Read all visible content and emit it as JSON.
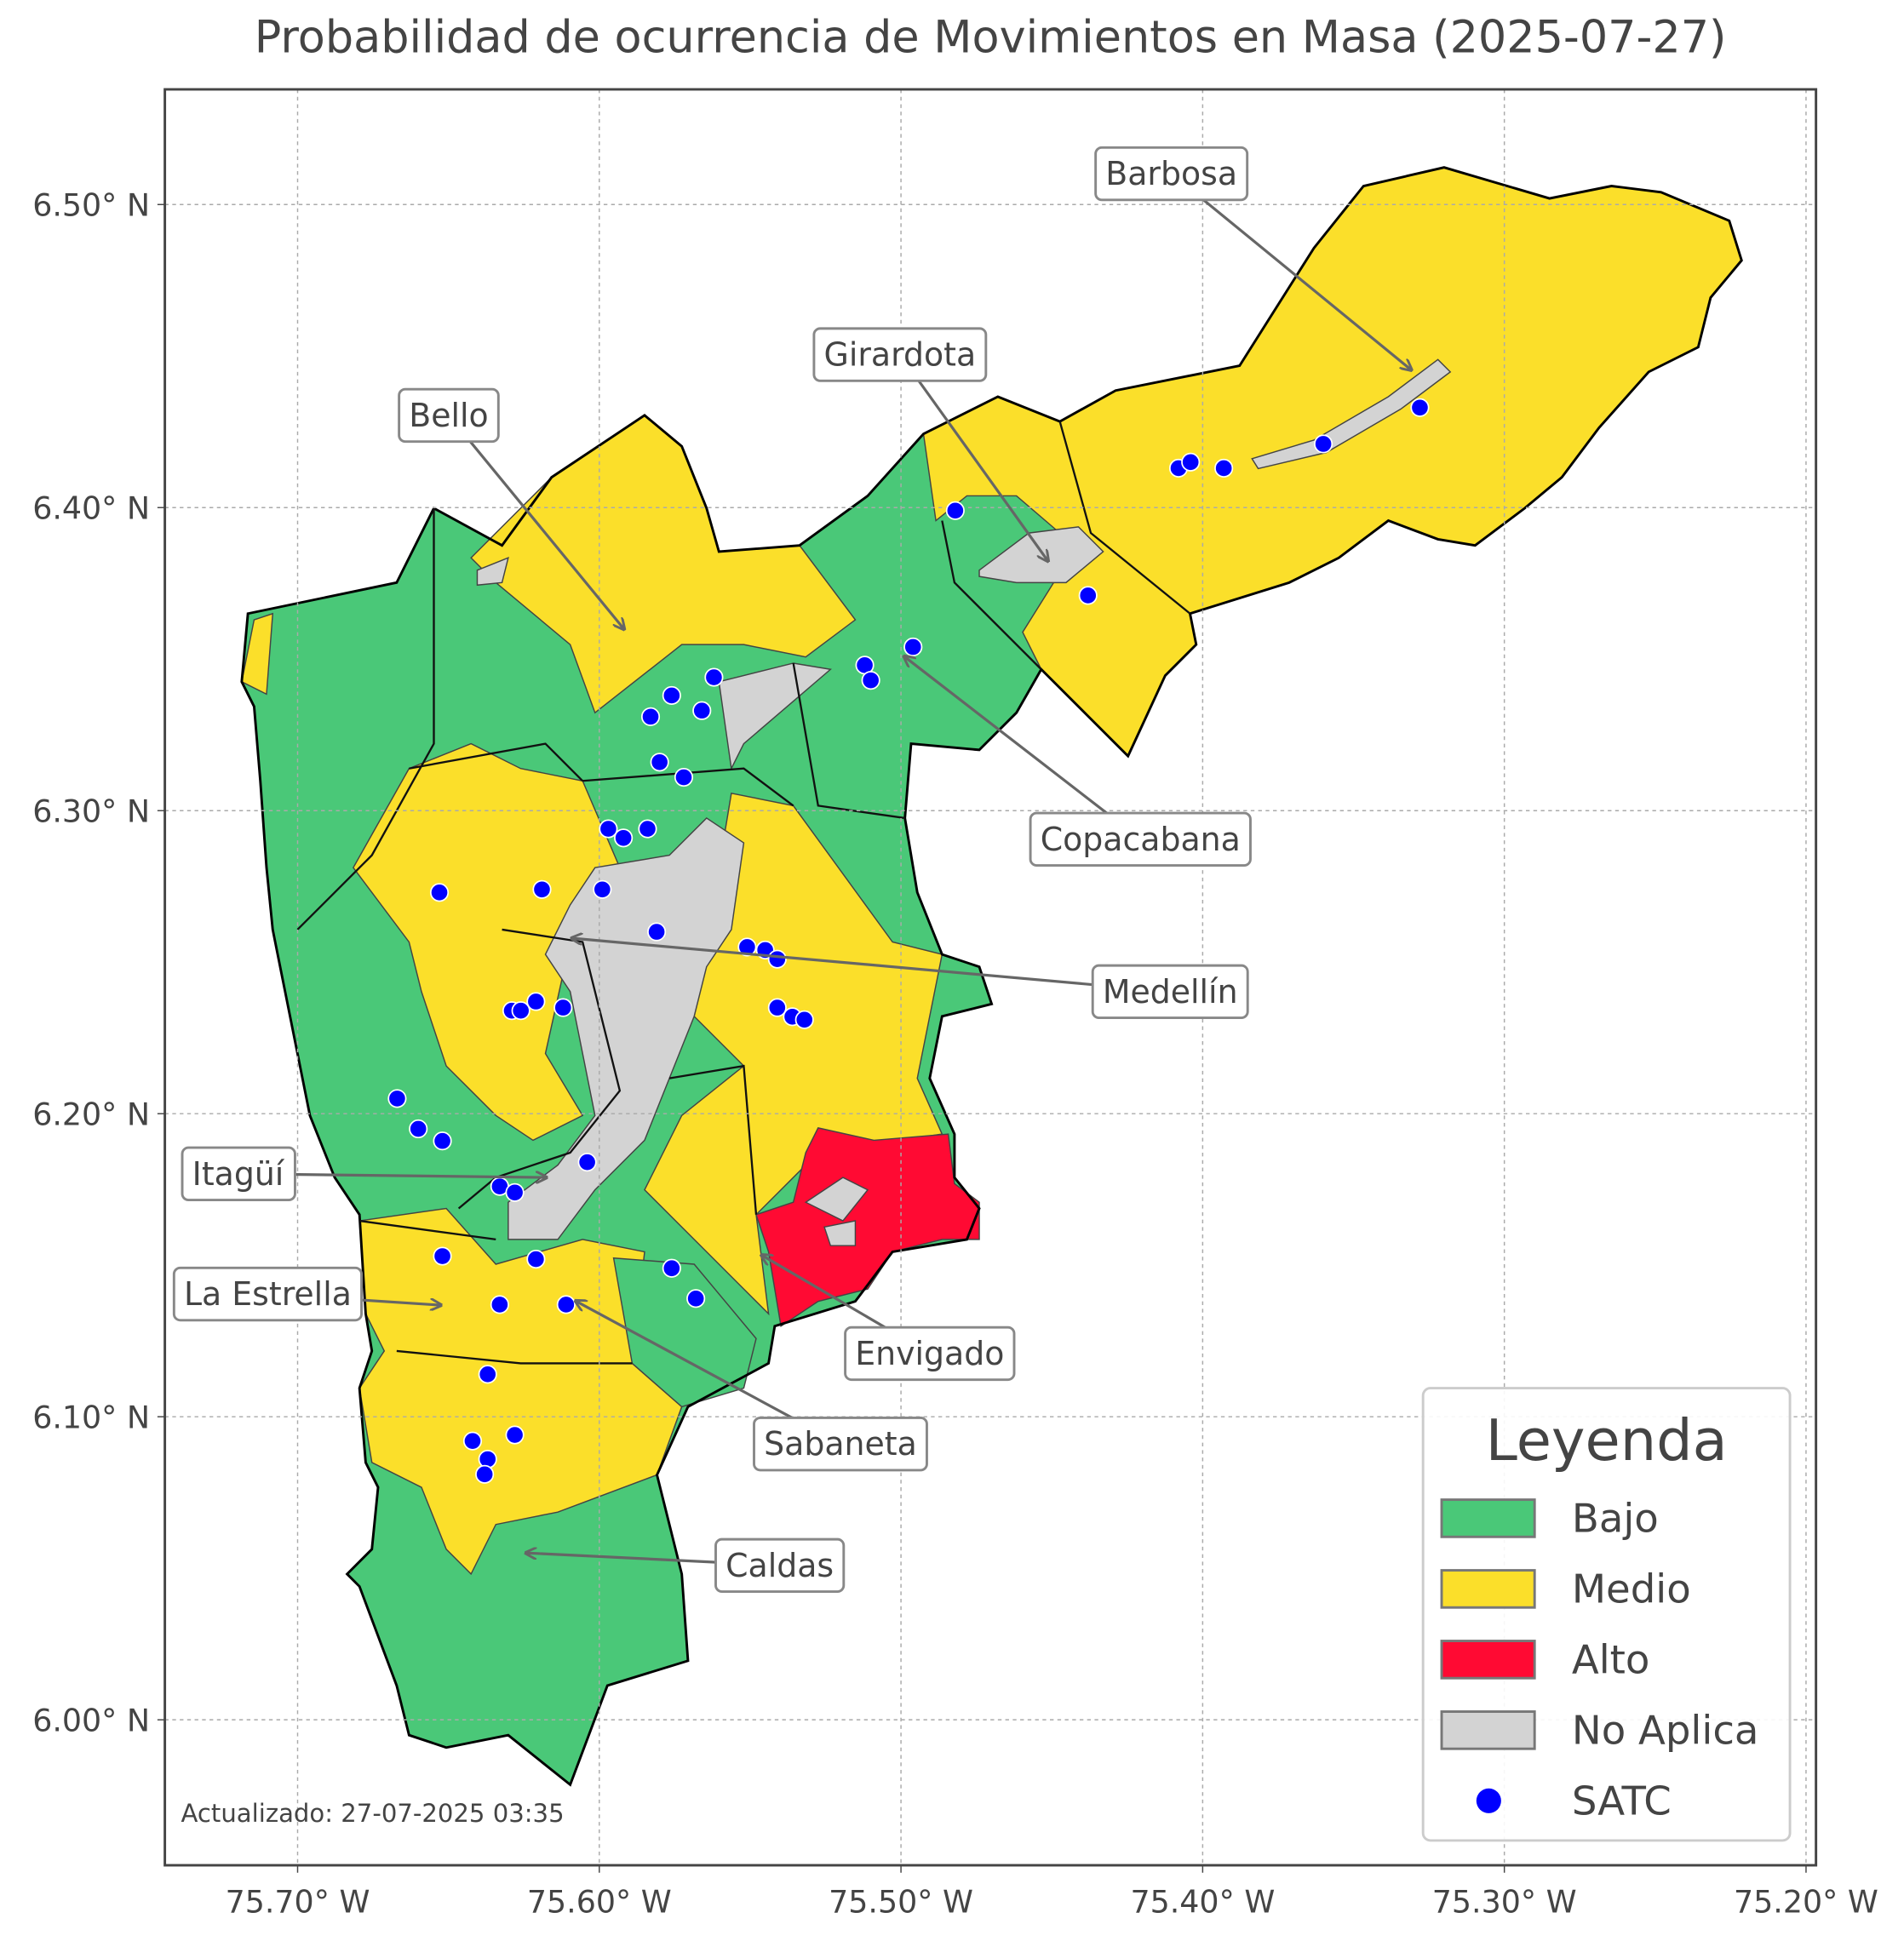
{
  "map": {
    "title": "Probabilidad de ocurrencia de Movimientos en Masa (2025-07-27)",
    "xlim": [
      -75.744,
      -75.1967
    ],
    "ylim": [
      5.952,
      6.538
    ],
    "xticks": [
      {
        "value": -75.7,
        "label": "75.70° W"
      },
      {
        "value": -75.6,
        "label": "75.60° W"
      },
      {
        "value": -75.5,
        "label": "75.50° W"
      },
      {
        "value": -75.4,
        "label": "75.40° W"
      },
      {
        "value": -75.3,
        "label": "75.30° W"
      },
      {
        "value": -75.2,
        "label": "75.20° W"
      }
    ],
    "yticks": [
      {
        "value": 6.0,
        "label": "6.00° N"
      },
      {
        "value": 6.1,
        "label": "6.10° N"
      },
      {
        "value": 6.2,
        "label": "6.20° N"
      },
      {
        "value": 6.3,
        "label": "6.30° N"
      },
      {
        "value": 6.4,
        "label": "6.40° N"
      },
      {
        "value": 6.5,
        "label": "6.50° N"
      }
    ],
    "grid": true,
    "legend": {
      "title": "Leyenda",
      "position": "lower right",
      "items": [
        {
          "name": "Bajo",
          "color": "#4ac878"
        },
        {
          "name": "Medio",
          "color": "#fbdf2a"
        },
        {
          "name": "Alto",
          "color": "#ff0a33"
        },
        {
          "name": "No Aplica",
          "color": "#d3d3d3"
        }
      ]
    },
    "stations": {
      "name": "SATC",
      "color": "#0000ff",
      "x": [
        -75.482,
        -75.408,
        -75.404,
        -75.393,
        -75.36,
        -75.328,
        -75.438,
        -75.496,
        -75.512,
        -75.51,
        -75.562,
        -75.576,
        -75.566,
        -75.583,
        -75.58,
        -75.572,
        -75.597,
        -75.592,
        -75.584,
        -75.653,
        -75.619,
        -75.599,
        -75.581,
        -75.551,
        -75.545,
        -75.541,
        -75.541,
        -75.536,
        -75.532,
        -75.621,
        -75.629,
        -75.626,
        -75.612,
        -75.667,
        -75.66,
        -75.652,
        -75.604,
        -75.633,
        -75.628,
        -75.652,
        -75.621,
        -75.576,
        -75.568,
        -75.633,
        -75.611,
        -75.637,
        -75.642,
        -75.628,
        -75.637,
        -75.638
      ],
      "y": [
        6.399,
        6.413,
        6.415,
        6.413,
        6.421,
        6.433,
        6.371,
        6.354,
        6.348,
        6.343,
        6.344,
        6.338,
        6.333,
        6.331,
        6.316,
        6.311,
        6.294,
        6.291,
        6.294,
        6.273,
        6.274,
        6.274,
        6.26,
        6.255,
        6.254,
        6.251,
        6.235,
        6.232,
        6.231,
        6.237,
        6.234,
        6.234,
        6.235,
        6.205,
        6.195,
        6.191,
        6.184,
        6.176,
        6.174,
        6.153,
        6.152,
        6.149,
        6.139,
        6.137,
        6.137,
        6.114,
        6.092,
        6.094,
        6.086,
        6.081
      ]
    },
    "annotations": [
      "Barbosa",
      "Girardota",
      "Bello",
      "Copacabana",
      "Medellín",
      "Itagüí",
      "La Estrella",
      "Envigado",
      "Sabaneta",
      "Caldas"
    ],
    "footer": "Actualizado: 27-07-2025 03:35"
  }
}
